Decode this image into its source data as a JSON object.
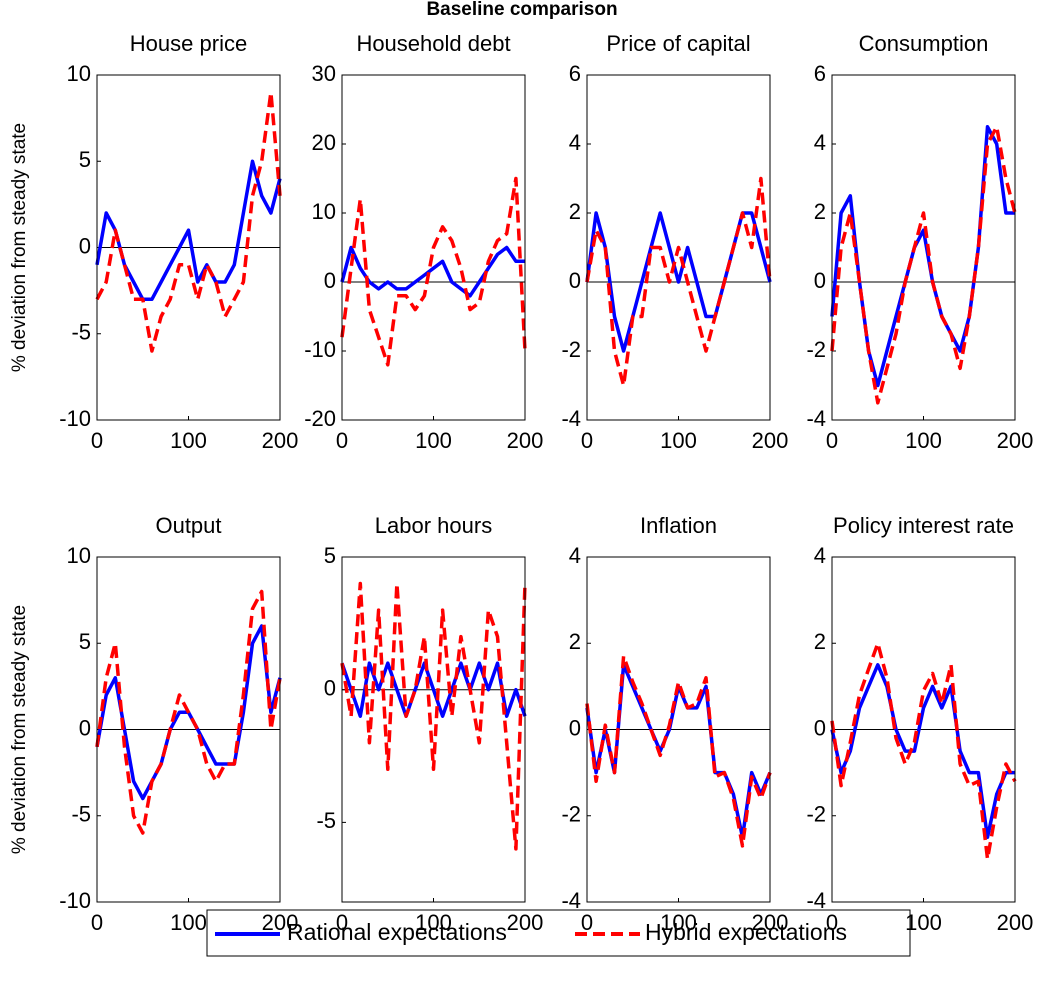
{
  "title": "Baseline comparison",
  "chart_data": [
    {
      "type": "line",
      "title": "House price",
      "ylabel": "% deviation from steady state",
      "x": [
        0,
        10,
        20,
        30,
        40,
        50,
        60,
        70,
        80,
        90,
        100,
        110,
        120,
        130,
        140,
        150,
        160,
        170,
        180,
        190,
        200
      ],
      "xlim": [
        0,
        200
      ],
      "xticks": [
        0,
        100,
        200
      ],
      "ylim": [
        -10,
        10
      ],
      "yticks": [
        -10,
        -5,
        0,
        5,
        10
      ],
      "zero_line": 0,
      "series": [
        {
          "name": "Rational expectations",
          "color": "#0000ff",
          "values": [
            -1,
            2,
            1,
            -1,
            -2,
            -3,
            -3,
            -2,
            -1,
            0,
            1,
            -2,
            -1,
            -2,
            -2,
            -1,
            2,
            5,
            3,
            2,
            4
          ]
        },
        {
          "name": "Hybrid expectations",
          "color": "#ff0000",
          "values": [
            -3,
            -2,
            1,
            -1,
            -3,
            -3,
            -6,
            -4,
            -3,
            -1,
            -1,
            -3,
            -1,
            -2,
            -4,
            -3,
            -2,
            3,
            5,
            9,
            3
          ]
        }
      ]
    },
    {
      "type": "line",
      "title": "Household debt",
      "x": [
        0,
        10,
        20,
        30,
        40,
        50,
        60,
        70,
        80,
        90,
        100,
        110,
        120,
        130,
        140,
        150,
        160,
        170,
        180,
        190,
        200
      ],
      "xlim": [
        0,
        200
      ],
      "xticks": [
        0,
        100,
        200
      ],
      "ylim": [
        -20,
        30
      ],
      "yticks": [
        -20,
        -10,
        0,
        10,
        20,
        30
      ],
      "zero_line": 0,
      "series": [
        {
          "color": "#0000ff",
          "values": [
            0,
            5,
            2,
            0,
            -1,
            0,
            -1,
            -1,
            0,
            1,
            2,
            3,
            0,
            -1,
            -2,
            0,
            2,
            4,
            5,
            3,
            3
          ]
        },
        {
          "color": "#ff0000",
          "values": [
            -8,
            2,
            12,
            -4,
            -8,
            -12,
            -2,
            -2,
            -4,
            -2,
            5,
            8,
            6,
            2,
            -4,
            -3,
            3,
            6,
            7,
            15,
            -10
          ]
        }
      ]
    },
    {
      "type": "line",
      "title": "Price of capital",
      "x": [
        0,
        10,
        20,
        30,
        40,
        50,
        60,
        70,
        80,
        90,
        100,
        110,
        120,
        130,
        140,
        150,
        160,
        170,
        180,
        190,
        200
      ],
      "xlim": [
        0,
        200
      ],
      "xticks": [
        0,
        100,
        200
      ],
      "ylim": [
        -4,
        6
      ],
      "yticks": [
        -4,
        -2,
        0,
        2,
        4,
        6
      ],
      "zero_line": 0,
      "series": [
        {
          "color": "#0000ff",
          "values": [
            0,
            2,
            1,
            -1,
            -2,
            -1,
            0,
            1,
            2,
            1,
            0,
            1,
            0,
            -1,
            -1,
            0,
            1,
            2,
            2,
            1,
            0
          ]
        },
        {
          "color": "#ff0000",
          "values": [
            0,
            1.5,
            1,
            -2,
            -3,
            -1,
            -1,
            1,
            1,
            0,
            1,
            0,
            -1,
            -2,
            -1,
            0,
            1,
            2,
            1,
            3,
            0
          ]
        }
      ]
    },
    {
      "type": "line",
      "title": "Consumption",
      "x": [
        0,
        10,
        20,
        30,
        40,
        50,
        60,
        70,
        80,
        90,
        100,
        110,
        120,
        130,
        140,
        150,
        160,
        170,
        180,
        190,
        200
      ],
      "xlim": [
        0,
        200
      ],
      "xticks": [
        0,
        100,
        200
      ],
      "ylim": [
        -4,
        6
      ],
      "yticks": [
        -4,
        -2,
        0,
        2,
        4,
        6
      ],
      "zero_line": 0,
      "series": [
        {
          "color": "#0000ff",
          "values": [
            -1,
            2,
            2.5,
            0,
            -2,
            -3,
            -2,
            -1,
            0,
            1,
            1.5,
            0,
            -1,
            -1.5,
            -2,
            -1,
            1,
            4.5,
            4,
            2,
            2
          ]
        },
        {
          "color": "#ff0000",
          "values": [
            -2,
            1,
            2,
            0,
            -2,
            -3.5,
            -2.5,
            -1.5,
            0,
            1,
            2,
            0,
            -1,
            -1.5,
            -2.5,
            -1,
            1,
            4,
            4.5,
            3,
            2
          ]
        }
      ]
    },
    {
      "type": "line",
      "title": "Output",
      "ylabel": "% deviation from steady state",
      "x": [
        0,
        10,
        20,
        30,
        40,
        50,
        60,
        70,
        80,
        90,
        100,
        110,
        120,
        130,
        140,
        150,
        160,
        170,
        180,
        190,
        200
      ],
      "xlim": [
        0,
        200
      ],
      "xticks": [
        0,
        100,
        200
      ],
      "ylim": [
        -10,
        10
      ],
      "yticks": [
        -10,
        -5,
        0,
        5,
        10
      ],
      "zero_line": 0,
      "series": [
        {
          "color": "#0000ff",
          "values": [
            -1,
            2,
            3,
            0,
            -3,
            -4,
            -3,
            -2,
            0,
            1,
            1,
            0,
            -1,
            -2,
            -2,
            -2,
            1,
            5,
            6,
            1,
            3
          ]
        },
        {
          "color": "#ff0000",
          "values": [
            -1,
            3,
            5,
            -1,
            -5,
            -6,
            -3,
            -2,
            0,
            2,
            1,
            0,
            -2,
            -3,
            -2,
            -2,
            2,
            7,
            8,
            0,
            3
          ]
        }
      ]
    },
    {
      "type": "line",
      "title": "Labor hours",
      "x": [
        0,
        10,
        20,
        30,
        40,
        50,
        60,
        70,
        80,
        90,
        100,
        110,
        120,
        130,
        140,
        150,
        160,
        170,
        180,
        190,
        200
      ],
      "xlim": [
        0,
        200
      ],
      "xticks": [
        0,
        100,
        200
      ],
      "ylim": [
        -8,
        5
      ],
      "yticks": [
        -5,
        0,
        5
      ],
      "zero_line": 0,
      "series": [
        {
          "color": "#0000ff",
          "values": [
            1,
            0,
            -1,
            1,
            0,
            1,
            0,
            -1,
            0,
            1,
            0,
            -1,
            0,
            1,
            0,
            1,
            0,
            1,
            -1,
            0,
            -1
          ]
        },
        {
          "color": "#ff0000",
          "values": [
            1,
            -1,
            4,
            -2,
            3,
            -3,
            4,
            -1,
            0,
            2,
            -3,
            3,
            -1,
            2,
            0,
            -2,
            3,
            2,
            -2,
            -6,
            4
          ]
        }
      ]
    },
    {
      "type": "line",
      "title": "Inflation",
      "x": [
        0,
        10,
        20,
        30,
        40,
        50,
        60,
        70,
        80,
        90,
        100,
        110,
        120,
        130,
        140,
        150,
        160,
        170,
        180,
        190,
        200
      ],
      "xlim": [
        0,
        200
      ],
      "xticks": [
        0,
        100,
        200
      ],
      "ylim": [
        -4,
        4
      ],
      "yticks": [
        -4,
        -2,
        0,
        2,
        4
      ],
      "zero_line": 0,
      "series": [
        {
          "color": "#0000ff",
          "values": [
            0.5,
            -1,
            0,
            -1,
            1.5,
            1,
            0.5,
            0,
            -0.5,
            0,
            1,
            0.5,
            0.5,
            1,
            -1,
            -1,
            -1.5,
            -2.5,
            -1,
            -1.5,
            -1
          ]
        },
        {
          "color": "#ff0000",
          "values": [
            0.6,
            -1.2,
            0.1,
            -1,
            1.7,
            1.1,
            0.6,
            0,
            -0.6,
            0.1,
            1.1,
            0.5,
            0.6,
            1.2,
            -1.1,
            -1,
            -1.6,
            -2.7,
            -1.1,
            -1.6,
            -1
          ]
        }
      ]
    },
    {
      "type": "line",
      "title": "Policy interest rate",
      "x": [
        0,
        10,
        20,
        30,
        40,
        50,
        60,
        70,
        80,
        90,
        100,
        110,
        120,
        130,
        140,
        150,
        160,
        170,
        180,
        190,
        200
      ],
      "xlim": [
        0,
        200
      ],
      "xticks": [
        0,
        100,
        200
      ],
      "ylim": [
        -4,
        4
      ],
      "yticks": [
        -4,
        -2,
        0,
        2,
        4
      ],
      "zero_line": 0,
      "series": [
        {
          "color": "#0000ff",
          "values": [
            0,
            -1,
            -0.5,
            0.5,
            1,
            1.5,
            1,
            0,
            -0.5,
            -0.5,
            0.5,
            1,
            0.5,
            1,
            -0.5,
            -1,
            -1,
            -2.5,
            -1.5,
            -1,
            -1
          ]
        },
        {
          "color": "#ff0000",
          "values": [
            0.2,
            -1.3,
            -0.3,
            0.8,
            1.4,
            2,
            1.2,
            -0.2,
            -0.8,
            -0.3,
            0.9,
            1.3,
            0.6,
            1.5,
            -0.8,
            -1.3,
            -1.2,
            -3,
            -1.8,
            -0.8,
            -1.2
          ]
        }
      ]
    }
  ]
}
